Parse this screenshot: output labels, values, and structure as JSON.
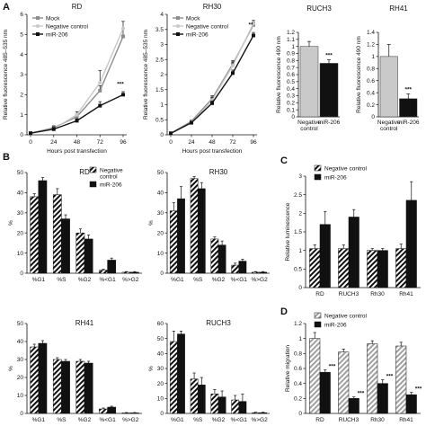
{
  "panels": {
    "A": "A",
    "B": "B",
    "C": "C",
    "D": "D"
  },
  "colors": {
    "mock": "#8c8c8c",
    "negative_control": "#c8c8c8",
    "mir206": "#111111",
    "gray_bar": "#c9c9c9",
    "black_bar": "#111111"
  },
  "chart_data": [
    {
      "id": "A_RD",
      "type": "line",
      "title": "RD",
      "xlabel": "Hours post transfection",
      "ylabel": "Relative fluorescence 485–535 nm",
      "x": [
        0,
        24,
        48,
        72,
        96
      ],
      "xlim": [
        0,
        96
      ],
      "ylim": [
        0,
        6
      ],
      "xticks": [
        "0",
        "24",
        "48",
        "72",
        "96"
      ],
      "yticks": [
        "0",
        "1",
        "2",
        "3",
        "4",
        "5",
        "6"
      ],
      "legend": [
        "Mock",
        "Negative control",
        "miR-206"
      ],
      "series": [
        {
          "name": "Mock",
          "values": [
            0.08,
            0.35,
            0.9,
            2.2,
            4.9
          ],
          "errors": [
            0.03,
            0.1,
            0.15,
            0.25,
            0.4
          ]
        },
        {
          "name": "Negative control",
          "values": [
            0.08,
            0.3,
            1.0,
            2.6,
            5.3
          ],
          "errors": [
            0.03,
            0.1,
            0.15,
            0.6,
            0.35
          ]
        },
        {
          "name": "miR-206",
          "values": [
            0.08,
            0.28,
            0.7,
            1.45,
            2.0
          ],
          "errors": [
            0.03,
            0.08,
            0.1,
            0.2,
            0.15
          ]
        }
      ],
      "annotations": [
        {
          "x": 96,
          "text": "***"
        }
      ]
    },
    {
      "id": "A_RH30",
      "type": "line",
      "title": "RH30",
      "xlabel": "Hours post transfection",
      "ylabel": "Relative fluorescence 485–535 nm",
      "x": [
        0,
        24,
        48,
        72,
        96
      ],
      "xlim": [
        0,
        96
      ],
      "ylim": [
        0,
        4
      ],
      "xticks": [
        "0",
        "24",
        "48",
        "72",
        "96"
      ],
      "yticks": [
        "0",
        "0.5",
        "1",
        "1.5",
        "2",
        "2.5",
        "3",
        "3.5",
        "4"
      ],
      "legend": [
        "Mock",
        "Negative control",
        "miR-206"
      ],
      "series": [
        {
          "name": "Mock",
          "values": [
            0.05,
            0.45,
            1.2,
            2.35,
            3.65
          ],
          "errors": [
            0.02,
            0.05,
            0.1,
            0.12,
            0.1
          ]
        },
        {
          "name": "Negative control",
          "values": [
            0.05,
            0.4,
            1.15,
            2.3,
            3.7
          ],
          "errors": [
            0.02,
            0.05,
            0.1,
            0.12,
            0.1
          ]
        },
        {
          "name": "miR-206",
          "values": [
            0.05,
            0.4,
            1.05,
            2.05,
            3.3
          ],
          "errors": [
            0.02,
            0.05,
            0.08,
            0.1,
            0.1
          ]
        }
      ],
      "annotations": [
        {
          "x": 96,
          "text": "**"
        }
      ]
    },
    {
      "id": "A_RUCH3",
      "type": "bar",
      "title": "RUCH3",
      "ylabel": "Relative fluorescence 490 nm",
      "categories": [
        "Negative control",
        "miR-206"
      ],
      "category_labels": [
        [
          "Negative",
          "control"
        ],
        [
          "miR-206"
        ]
      ],
      "values": [
        1.0,
        0.76
      ],
      "errors": [
        0.07,
        0.05
      ],
      "ylim": [
        0,
        1.2
      ],
      "yticks": [
        "0",
        "0.1",
        "0.2",
        "0.3",
        "0.4",
        "0.5",
        "0.6",
        "0.7",
        "0.8",
        "0.9",
        "1",
        "1.1",
        "1.2"
      ],
      "annotations": [
        {
          "index": 1,
          "text": "***"
        }
      ]
    },
    {
      "id": "A_RH41",
      "type": "bar",
      "title": "RH41",
      "ylabel": "Relative fluorescence 490 nm",
      "categories": [
        "Negative control",
        "miR-206"
      ],
      "category_labels": [
        [
          "Negative",
          "control"
        ],
        [
          "miR-206"
        ]
      ],
      "values": [
        1.0,
        0.3
      ],
      "errors": [
        0.2,
        0.08
      ],
      "ylim": [
        0,
        1.4
      ],
      "yticks": [
        "0",
        "0.2",
        "0.4",
        "0.6",
        "0.8",
        "1",
        "1.2",
        "1.4"
      ],
      "annotations": [
        {
          "index": 1,
          "text": "***"
        }
      ]
    },
    {
      "id": "B_RD",
      "type": "bar",
      "title": "RD",
      "ylabel": "%",
      "categories": [
        "%G1",
        "%S",
        "%G2",
        "%<G1",
        "%>G2"
      ],
      "ylim": [
        0,
        50
      ],
      "yticks": [
        "0",
        "10",
        "20",
        "30",
        "40",
        "50"
      ],
      "legend": [
        [
          "Negative",
          "control"
        ],
        [
          "miR-206"
        ]
      ],
      "series": [
        {
          "name": "Negative control",
          "values": [
            38,
            39,
            20,
            1.5,
            0.5
          ],
          "errors": [
            1.5,
            3,
            2,
            0.5,
            0.3
          ]
        },
        {
          "name": "miR-206",
          "values": [
            46,
            27,
            17,
            6.5,
            0.5
          ],
          "errors": [
            1.5,
            2,
            2,
            1,
            0.3
          ]
        }
      ]
    },
    {
      "id": "B_RH30",
      "type": "bar",
      "title": "RH30",
      "ylabel": "%",
      "categories": [
        "%G1",
        "%S",
        "%G2",
        "%<G1",
        "%>G2"
      ],
      "ylim": [
        0,
        50
      ],
      "yticks": [
        "0",
        "10",
        "20",
        "30",
        "40",
        "50"
      ],
      "series": [
        {
          "name": "Negative control",
          "values": [
            31,
            47,
            17,
            4,
            0.5
          ],
          "errors": [
            4,
            1,
            1,
            1,
            0.3
          ]
        },
        {
          "name": "miR-206",
          "values": [
            37,
            42,
            14,
            6,
            0.5
          ],
          "errors": [
            6,
            3,
            2,
            1,
            0.3
          ]
        }
      ]
    },
    {
      "id": "B_RH41",
      "type": "bar",
      "title": "RH41",
      "ylabel": "%",
      "categories": [
        "%G1",
        "%S",
        "%G2",
        "%<G1",
        "%>G2"
      ],
      "ylim": [
        0,
        50
      ],
      "yticks": [
        "0",
        "10",
        "20",
        "30",
        "40",
        "50"
      ],
      "series": [
        {
          "name": "Negative control",
          "values": [
            37,
            30,
            29,
            2.5,
            0.3
          ],
          "errors": [
            1.5,
            1,
            1,
            0.5,
            0.2
          ]
        },
        {
          "name": "miR-206",
          "values": [
            39,
            29,
            28,
            3.5,
            0.3
          ],
          "errors": [
            1.5,
            1,
            1,
            0.5,
            0.2
          ]
        }
      ]
    },
    {
      "id": "B_RUCH3",
      "type": "bar",
      "title": "RUCH3",
      "ylabel": "%",
      "categories": [
        "%G1",
        "%S",
        "%G2",
        "%<G1",
        "%>G2"
      ],
      "ylim": [
        0,
        60
      ],
      "yticks": [
        "0",
        "10",
        "20",
        "30",
        "40",
        "50",
        "60"
      ],
      "series": [
        {
          "name": "Negative control",
          "values": [
            48,
            23,
            13,
            9,
            0.5
          ],
          "errors": [
            7,
            4,
            3,
            3,
            0.3
          ]
        },
        {
          "name": "miR-206",
          "values": [
            53,
            19,
            11,
            8,
            0.5
          ],
          "errors": [
            2,
            5,
            4,
            5,
            0.3
          ]
        }
      ]
    },
    {
      "id": "C",
      "type": "bar",
      "title": "",
      "ylabel": "Relative luminescence",
      "categories": [
        "RD",
        "RUCH3",
        "Rh30",
        "Rh41"
      ],
      "ylim": [
        0,
        3
      ],
      "yticks": [
        "0",
        "0.5",
        "1",
        "1.5",
        "2",
        "2.5",
        "3"
      ],
      "legend": [
        "Negative control",
        "miR-206"
      ],
      "series": [
        {
          "name": "Negative control",
          "values": [
            1.05,
            1.05,
            1.0,
            1.05
          ],
          "errors": [
            0.1,
            0.1,
            0.05,
            0.12
          ]
        },
        {
          "name": "miR-206",
          "values": [
            1.7,
            1.9,
            1.0,
            2.35
          ],
          "errors": [
            0.35,
            0.2,
            0.05,
            0.5
          ]
        }
      ]
    },
    {
      "id": "D",
      "type": "bar",
      "title": "",
      "ylabel": "Relative migration",
      "categories": [
        "RD",
        "RUCH3",
        "Rh30",
        "Rh41"
      ],
      "ylim": [
        0,
        1.2
      ],
      "yticks": [
        "0",
        "0.2",
        "0.4",
        "0.6",
        "0.8",
        "1",
        "1.2"
      ],
      "legend": [
        "Negative control",
        "miR-206"
      ],
      "series": [
        {
          "name": "Negative control",
          "values": [
            1.0,
            0.82,
            0.93,
            0.9
          ],
          "errors": [
            0.08,
            0.04,
            0.04,
            0.05
          ]
        },
        {
          "name": "miR-206",
          "values": [
            0.55,
            0.2,
            0.4,
            0.25
          ],
          "errors": [
            0.03,
            0.02,
            0.05,
            0.03
          ]
        }
      ],
      "annotations": [
        {
          "index": 0,
          "text": "***"
        },
        {
          "index": 1,
          "text": "***"
        },
        {
          "index": 2,
          "text": "***"
        },
        {
          "index": 3,
          "text": "***"
        }
      ]
    }
  ]
}
